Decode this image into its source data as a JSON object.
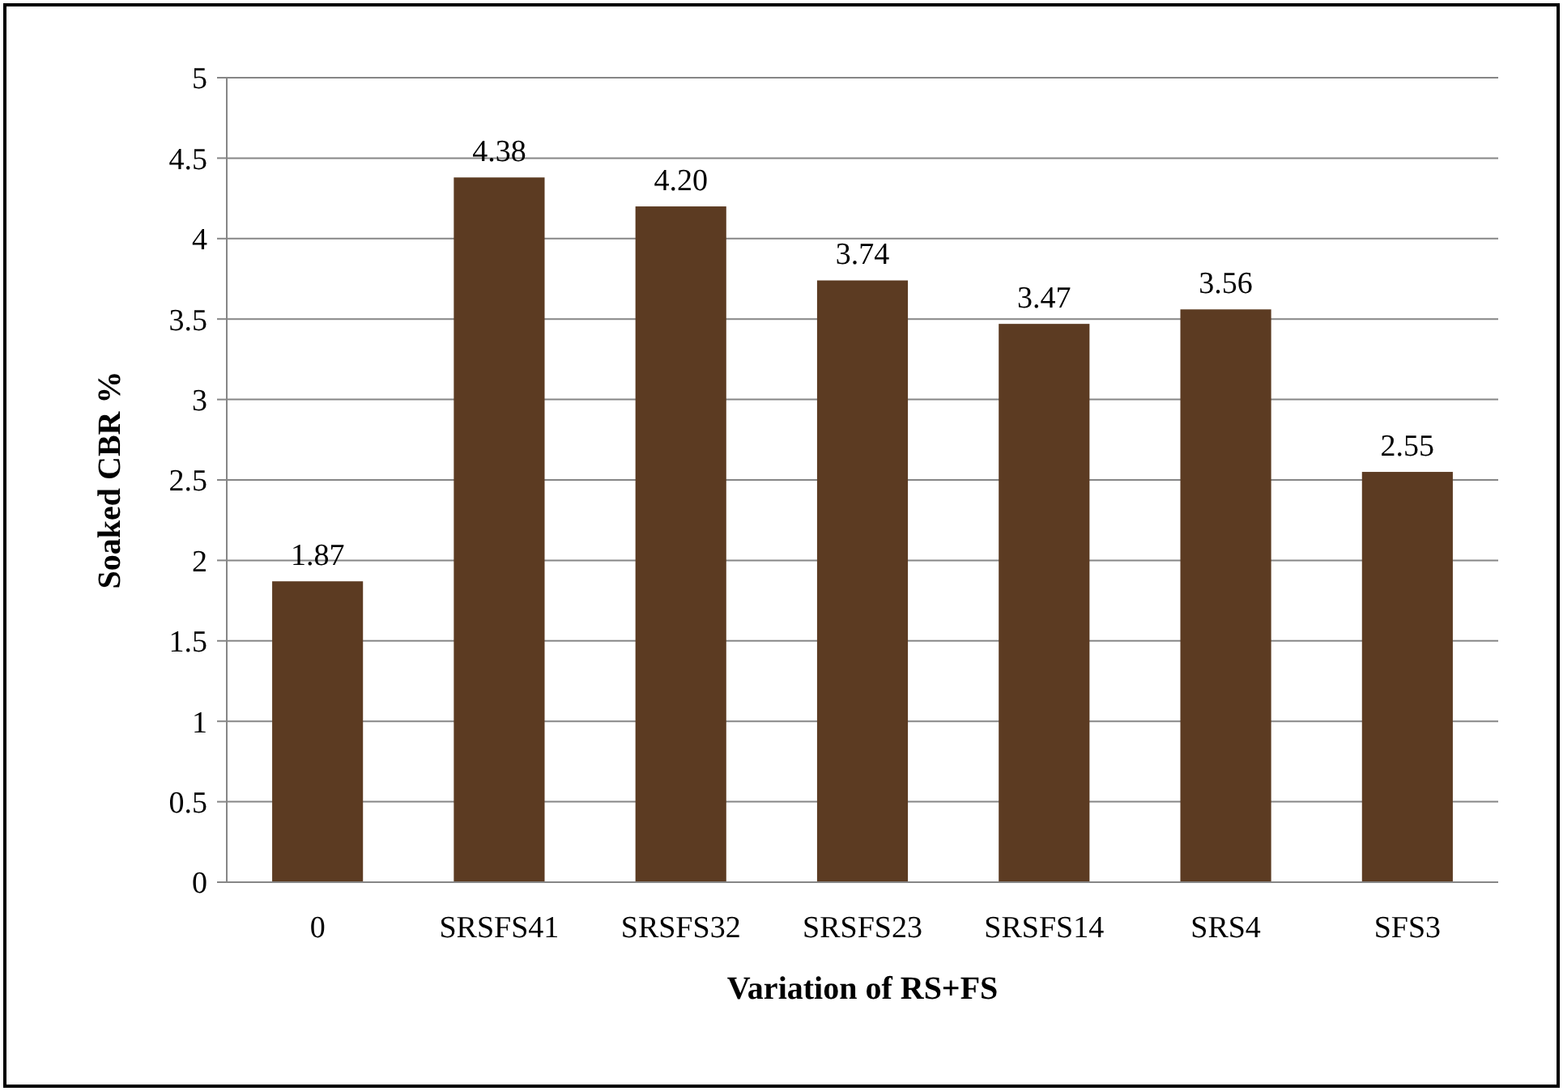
{
  "chart_data": {
    "type": "bar",
    "xlabel": "Variation of RS+FS",
    "ylabel": "Soaked CBR %",
    "categories": [
      "0",
      "SRSFS41",
      "SRSFS32",
      "SRSFS23",
      "SRSFS14",
      "SRS4",
      "SFS3"
    ],
    "values": [
      1.87,
      4.38,
      4.2,
      3.74,
      3.47,
      3.56,
      2.55
    ],
    "value_labels": [
      "1.87",
      "4.38",
      "4.20",
      "3.74",
      "3.47",
      "3.56",
      "2.55"
    ],
    "color": "#5c3b22",
    "ylim": [
      0,
      5
    ],
    "yticks": [
      0,
      0.5,
      1,
      1.5,
      2,
      2.5,
      3,
      3.5,
      4,
      4.5,
      5
    ],
    "grid": "y"
  }
}
